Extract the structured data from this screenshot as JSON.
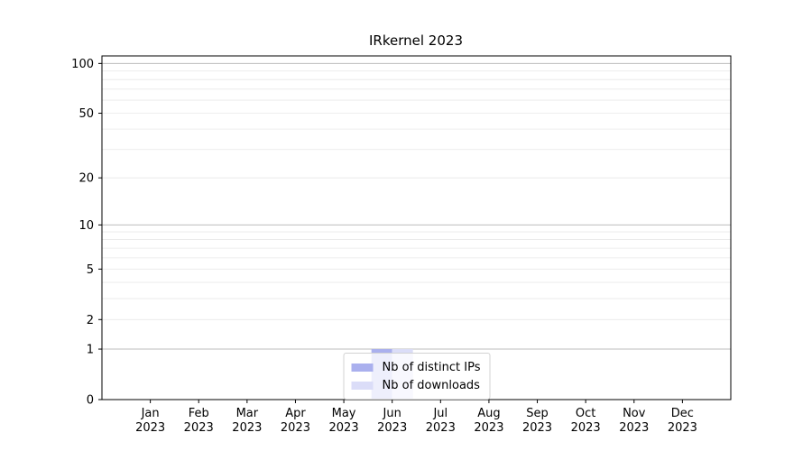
{
  "chart_data": {
    "type": "bar",
    "title": "IRkernel 2023",
    "categories": [
      "Jan 2023",
      "Feb 2023",
      "Mar 2023",
      "Apr 2023",
      "May 2023",
      "Jun 2023",
      "Jul 2023",
      "Aug 2023",
      "Sep 2023",
      "Oct 2023",
      "Nov 2023",
      "Dec 2023"
    ],
    "series": [
      {
        "name": "Nb of distinct IPs",
        "color": "#aab0ee",
        "values": [
          0,
          0,
          0,
          0,
          0,
          1,
          0,
          0,
          0,
          0,
          0,
          0
        ]
      },
      {
        "name": "Nb of downloads",
        "color": "#dbddf8",
        "values": [
          0,
          0,
          0,
          0,
          0,
          1,
          0,
          0,
          0,
          0,
          0,
          0
        ]
      }
    ],
    "xlabel": "",
    "ylabel": "",
    "yscale": "log1p",
    "ylim": [
      0,
      111
    ],
    "yticks": [
      0,
      1,
      2,
      5,
      10,
      20,
      50,
      100
    ],
    "grid": {
      "major_at": [
        1,
        10,
        100
      ],
      "minor_at": [
        2,
        3,
        4,
        5,
        6,
        7,
        8,
        9,
        20,
        30,
        40,
        50,
        60,
        70,
        80,
        90
      ]
    },
    "legend": {
      "position": "lower center"
    }
  },
  "colors": {
    "axis": "#000000",
    "major_grid": "#bdbdbd",
    "minor_grid": "#e8e8e8",
    "legend_border": "#d2d2d2"
  }
}
